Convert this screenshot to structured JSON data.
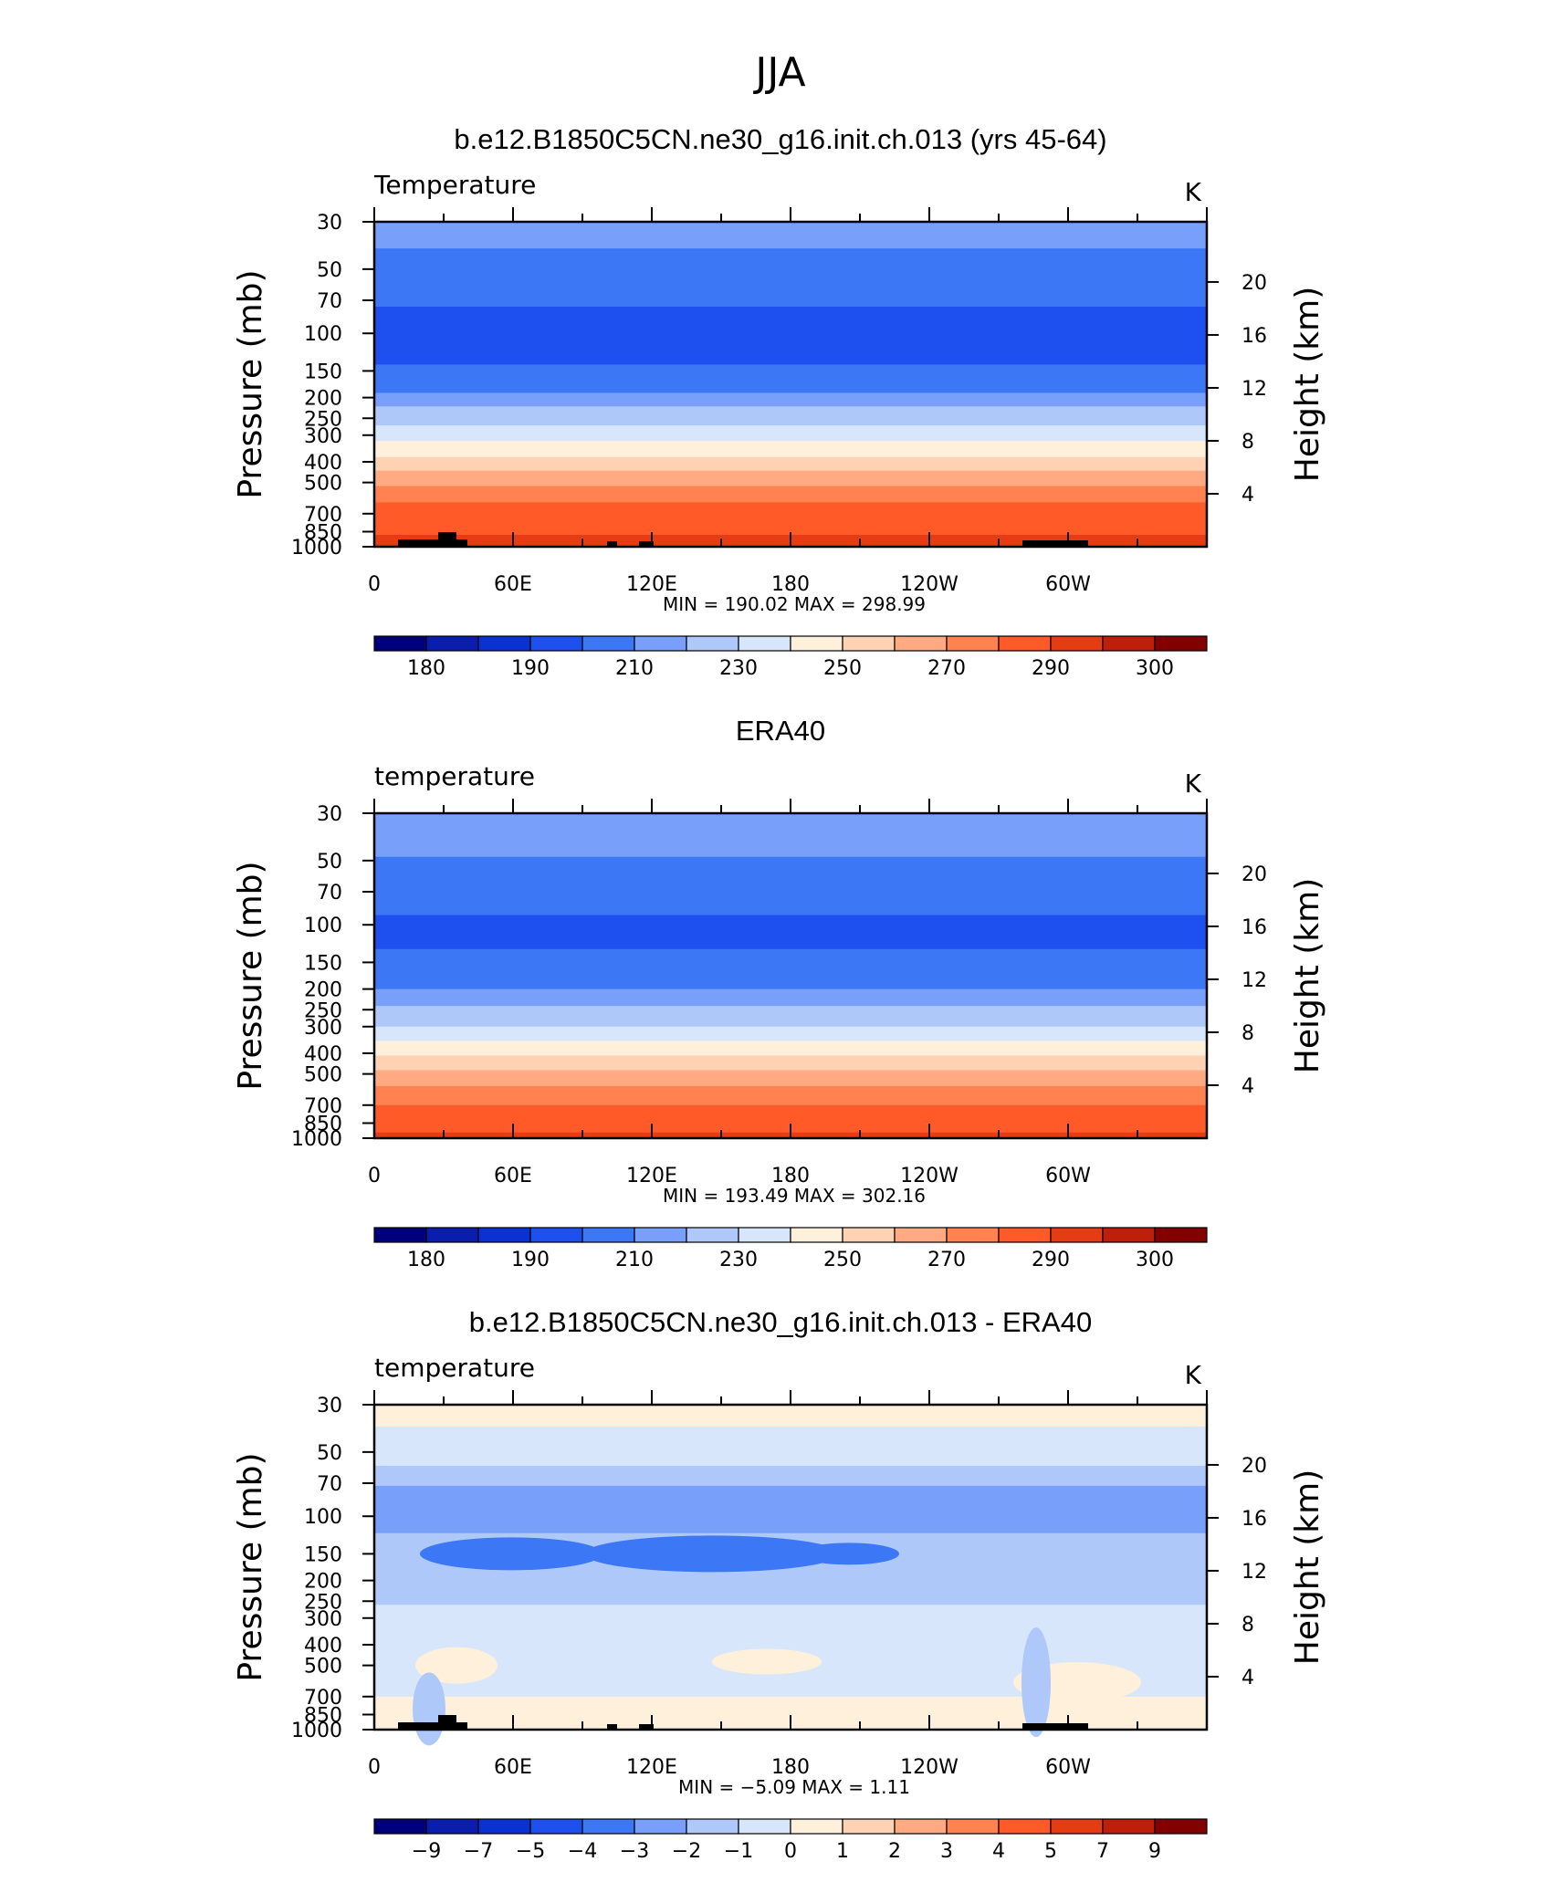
{
  "figure": {
    "title": "JJA"
  },
  "colors": {
    "temp_fill": [
      "#00007f",
      "#0a1dad",
      "#0a32d2",
      "#1e50f0",
      "#3c78f5",
      "#78a0fa",
      "#afc8fa",
      "#d7e6fa",
      "#fff0dc",
      "#ffd2b4",
      "#ffaa82",
      "#ff8250",
      "#ff5a28",
      "#e63c14",
      "#be1e0a",
      "#820000"
    ],
    "diff_fill": [
      "#00007f",
      "#0a1dad",
      "#0a32d2",
      "#1e50f0",
      "#3c78f5",
      "#78a0fa",
      "#afc8fa",
      "#d7e6fa",
      "#fff0dc",
      "#ffd2b4",
      "#ffaa82",
      "#ff8250",
      "#ff5a28",
      "#e63c14",
      "#be1e0a",
      "#820000"
    ],
    "topo": "#000000"
  },
  "chart_data": [
    {
      "type": "heatmap",
      "title": "b.e12.B1850C5CN.ne30_g16.init.ch.013 (yrs 45-64)",
      "left_label": "Temperature",
      "units": "K",
      "ylabel": "Pressure (mb)",
      "ylabel_right": "Height (km)",
      "xticks": [
        "0",
        "60E",
        "120E",
        "180",
        "120W",
        "60W"
      ],
      "x_values": [
        0,
        60,
        120,
        180,
        240,
        300
      ],
      "xlim": [
        0,
        360
      ],
      "yticks": [
        "30",
        "50",
        "70",
        "100",
        "150",
        "200",
        "250",
        "300",
        "400",
        "500",
        "700",
        "850",
        "1000"
      ],
      "y_values": [
        30,
        50,
        70,
        100,
        150,
        200,
        250,
        300,
        400,
        500,
        700,
        850,
        1000
      ],
      "ylim": [
        30,
        1000
      ],
      "log_y": true,
      "yticks_right": [
        "4",
        "8",
        "12",
        "16",
        "20"
      ],
      "yright_values": [
        4,
        8,
        12,
        16,
        20
      ],
      "stats": "MIN =  190.02   MAX =  298.99",
      "colorbar_labels": [
        "180",
        "190",
        "210",
        "230",
        "250",
        "270",
        "290",
        "300"
      ],
      "colorbar_levels": [
        175,
        180,
        185,
        190,
        200,
        210,
        220,
        230,
        240,
        250,
        260,
        270,
        280,
        290,
        295,
        300
      ],
      "profile": [
        {
          "p": 30,
          "v": 212
        },
        {
          "p": 40,
          "v": 212
        },
        {
          "p": 50,
          "v": 206
        },
        {
          "p": 65,
          "v": 206
        },
        {
          "p": 75,
          "v": 196
        },
        {
          "p": 140,
          "v": 196
        },
        {
          "p": 165,
          "v": 205
        },
        {
          "p": 190,
          "v": 212
        },
        {
          "p": 220,
          "v": 220
        },
        {
          "p": 270,
          "v": 229
        },
        {
          "p": 320,
          "v": 239
        },
        {
          "p": 380,
          "v": 249
        },
        {
          "p": 440,
          "v": 259
        },
        {
          "p": 520,
          "v": 268
        },
        {
          "p": 620,
          "v": 276
        },
        {
          "p": 760,
          "v": 284
        },
        {
          "p": 880,
          "v": 289
        },
        {
          "p": 1000,
          "v": 294
        }
      ]
    },
    {
      "type": "heatmap",
      "title": "ERA40",
      "left_label": "temperature",
      "units": "K",
      "ylabel": "Pressure (mb)",
      "ylabel_right": "Height (km)",
      "xticks": [
        "0",
        "60E",
        "120E",
        "180",
        "120W",
        "60W"
      ],
      "x_values": [
        0,
        60,
        120,
        180,
        240,
        300
      ],
      "xlim": [
        0,
        360
      ],
      "yticks": [
        "30",
        "50",
        "70",
        "100",
        "150",
        "200",
        "250",
        "300",
        "400",
        "500",
        "700",
        "850",
        "1000"
      ],
      "y_values": [
        30,
        50,
        70,
        100,
        150,
        200,
        250,
        300,
        400,
        500,
        700,
        850,
        1000
      ],
      "ylim": [
        30,
        1000
      ],
      "log_y": true,
      "yticks_right": [
        "4",
        "8",
        "12",
        "16",
        "20"
      ],
      "yright_values": [
        4,
        8,
        12,
        16,
        20
      ],
      "stats": "MIN =  193.49   MAX =  302.16",
      "colorbar_labels": [
        "180",
        "190",
        "210",
        "230",
        "250",
        "270",
        "290",
        "300"
      ],
      "colorbar_levels": [
        175,
        180,
        185,
        190,
        200,
        210,
        220,
        230,
        240,
        250,
        260,
        270,
        280,
        290,
        295,
        300
      ],
      "profile": [
        {
          "p": 30,
          "v": 212
        },
        {
          "p": 48,
          "v": 212
        },
        {
          "p": 52,
          "v": 206
        },
        {
          "p": 85,
          "v": 206
        },
        {
          "p": 90,
          "v": 198
        },
        {
          "p": 130,
          "v": 198
        },
        {
          "p": 140,
          "v": 206
        },
        {
          "p": 200,
          "v": 206
        },
        {
          "p": 215,
          "v": 214
        },
        {
          "p": 240,
          "v": 222
        },
        {
          "p": 300,
          "v": 234
        },
        {
          "p": 350,
          "v": 244
        },
        {
          "p": 410,
          "v": 254
        },
        {
          "p": 480,
          "v": 263
        },
        {
          "p": 570,
          "v": 272
        },
        {
          "p": 700,
          "v": 280
        },
        {
          "p": 830,
          "v": 287
        },
        {
          "p": 940,
          "v": 292
        },
        {
          "p": 1000,
          "v": 296
        }
      ]
    },
    {
      "type": "heatmap",
      "title": "b.e12.B1850C5CN.ne30_g16.init.ch.013 - ERA40",
      "left_label": "temperature",
      "units": "K",
      "ylabel": "Pressure (mb)",
      "ylabel_right": "Height (km)",
      "xticks": [
        "0",
        "60E",
        "120E",
        "180",
        "120W",
        "60W"
      ],
      "x_values": [
        0,
        60,
        120,
        180,
        240,
        300
      ],
      "xlim": [
        0,
        360
      ],
      "yticks": [
        "30",
        "50",
        "70",
        "100",
        "150",
        "200",
        "250",
        "300",
        "400",
        "500",
        "700",
        "850",
        "1000"
      ],
      "y_values": [
        30,
        50,
        70,
        100,
        150,
        200,
        250,
        300,
        400,
        500,
        700,
        850,
        1000
      ],
      "ylim": [
        30,
        1000
      ],
      "log_y": true,
      "yticks_right": [
        "4",
        "8",
        "12",
        "16",
        "20"
      ],
      "yright_values": [
        4,
        8,
        12,
        16,
        20
      ],
      "stats": "MIN =   −5.09   MAX =     1.11",
      "colorbar_labels": [
        "−9",
        "−7",
        "−5",
        "−4",
        "−3",
        "−2",
        "−1",
        "0",
        "1",
        "2",
        "3",
        "4",
        "5",
        "7",
        "9"
      ],
      "colorbar_levels": [
        -10,
        -9,
        -8,
        -7,
        -5,
        -4,
        -3,
        -2,
        -1,
        0,
        1,
        2,
        3,
        4,
        5,
        7,
        9
      ],
      "profile": [
        {
          "p": 30,
          "v": -0.5
        },
        {
          "p": 36,
          "v": -0.5
        },
        {
          "p": 38,
          "v": -1.5
        },
        {
          "p": 55,
          "v": -1.5
        },
        {
          "p": 58,
          "v": -2.5
        },
        {
          "p": 68,
          "v": -2.5
        },
        {
          "p": 72,
          "v": -3.5
        },
        {
          "p": 120,
          "v": -3.5
        },
        {
          "p": 125,
          "v": -2.5
        },
        {
          "p": 260,
          "v": -2.5
        },
        {
          "p": 270,
          "v": -1.5
        },
        {
          "p": 700,
          "v": -1.5
        },
        {
          "p": 720,
          "v": -0.5
        },
        {
          "p": 1000,
          "v": -0.5
        }
      ]
    }
  ]
}
